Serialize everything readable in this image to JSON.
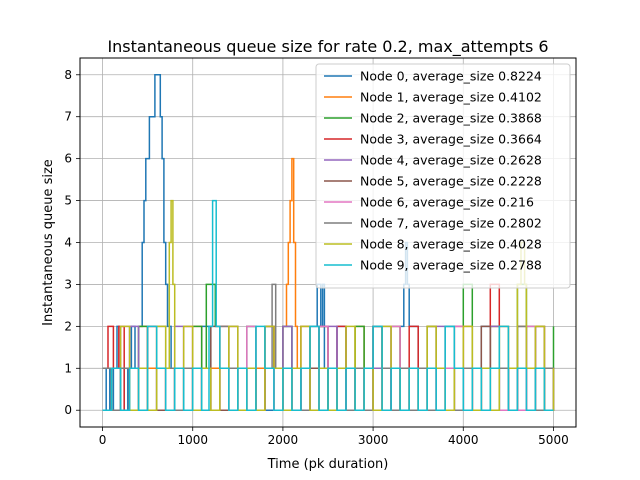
{
  "chart_data": {
    "type": "line",
    "title": "Instantaneous queue size for rate 0.2, max_attempts 6",
    "xlabel": "Time (pk duration)",
    "ylabel": "Instantaneous queue size",
    "xlim": [
      -250,
      5250
    ],
    "ylim": [
      -0.4,
      8.4
    ],
    "xticks": [
      0,
      1000,
      2000,
      3000,
      4000,
      5000
    ],
    "yticks": [
      0,
      1,
      2,
      3,
      4,
      5,
      6,
      7,
      8
    ],
    "grid": true,
    "legend_position": "top-right",
    "series": [
      {
        "name": "Node 0, average_size 0.8224",
        "color": "#1f77b4",
        "x": [
          0,
          40,
          80,
          120,
          160,
          200,
          240,
          280,
          320,
          360,
          400,
          440,
          460,
          480,
          500,
          520,
          540,
          560,
          580,
          600,
          620,
          640,
          660,
          680,
          700,
          720,
          760,
          800,
          900,
          1000,
          1100,
          1200,
          1300,
          1400,
          1500,
          1600,
          1700,
          1800,
          1900,
          2000,
          2100,
          2200,
          2300,
          2380,
          2400,
          2420,
          2440,
          2460,
          2500,
          2600,
          2700,
          2800,
          2900,
          3000,
          3100,
          3200,
          3300,
          3340,
          3360,
          3380,
          3400,
          3500,
          3600,
          3700,
          3800,
          3900,
          4000,
          4100,
          4200,
          4300,
          4400,
          4500,
          4600,
          4700,
          4800,
          4900,
          5000
        ],
        "y": [
          0,
          1,
          0,
          1,
          2,
          1,
          0,
          1,
          2,
          1,
          2,
          4,
          5,
          6,
          6,
          7,
          7,
          7,
          8,
          8,
          8,
          7,
          6,
          4,
          3,
          2,
          1,
          0,
          1,
          0,
          2,
          1,
          0,
          1,
          0,
          2,
          1,
          0,
          1,
          2,
          0,
          1,
          2,
          3,
          3,
          2,
          3,
          1,
          0,
          2,
          1,
          0,
          1,
          2,
          1,
          0,
          2,
          3,
          4,
          3,
          2,
          1,
          0,
          1,
          2,
          1,
          0,
          1,
          2,
          1,
          0,
          1,
          2,
          1,
          0,
          1,
          0
        ]
      },
      {
        "name": "Node 1, average_size 0.4102",
        "color": "#ff7f0e",
        "x": [
          0,
          100,
          200,
          300,
          400,
          500,
          600,
          700,
          800,
          900,
          1000,
          1100,
          1200,
          1300,
          1400,
          1500,
          1600,
          1700,
          1800,
          1900,
          2000,
          2040,
          2060,
          2080,
          2100,
          2120,
          2140,
          2160,
          2200,
          2300,
          2400,
          2500,
          2600,
          2700,
          2800,
          2900,
          3000,
          3100,
          3200,
          3300,
          3400,
          3500,
          3600,
          3700,
          3800,
          3900,
          4000,
          4100,
          4200,
          4300,
          4400,
          4500,
          4600,
          4700,
          4800,
          4900,
          5000
        ],
        "y": [
          1,
          0,
          1,
          0,
          2,
          1,
          0,
          1,
          0,
          1,
          2,
          0,
          1,
          0,
          2,
          1,
          0,
          1,
          2,
          0,
          2,
          3,
          4,
          5,
          6,
          4,
          2,
          1,
          0,
          1,
          2,
          0,
          1,
          0,
          2,
          1,
          0,
          1,
          2,
          0,
          1,
          0,
          2,
          1,
          0,
          1,
          2,
          0,
          1,
          2,
          1,
          0,
          2,
          1,
          0,
          1,
          0
        ]
      },
      {
        "name": "Node 2, average_size 0.3868",
        "color": "#2ca02c",
        "x": [
          0,
          100,
          200,
          300,
          400,
          500,
          600,
          700,
          800,
          900,
          1000,
          1100,
          1150,
          1200,
          1250,
          1300,
          1400,
          1500,
          1600,
          1700,
          1800,
          1900,
          2000,
          2100,
          2200,
          2300,
          2400,
          2500,
          2600,
          2700,
          2800,
          2900,
          3000,
          3100,
          3200,
          3300,
          3400,
          3500,
          3600,
          3700,
          3800,
          3900,
          4000,
          4100,
          4200,
          4300,
          4400,
          4500,
          4600,
          4700,
          4800,
          4900,
          5000
        ],
        "y": [
          0,
          1,
          0,
          1,
          2,
          0,
          1,
          0,
          1,
          0,
          2,
          1,
          3,
          3,
          2,
          1,
          0,
          1,
          2,
          0,
          1,
          0,
          2,
          1,
          0,
          1,
          2,
          0,
          1,
          0,
          2,
          1,
          0,
          1,
          2,
          0,
          1,
          0,
          2,
          1,
          0,
          1,
          3,
          1,
          0,
          2,
          1,
          0,
          3,
          2,
          1,
          0,
          2
        ]
      },
      {
        "name": "Node 3, average_size 0.3664",
        "color": "#d62728",
        "x": [
          0,
          60,
          120,
          180,
          240,
          300,
          400,
          500,
          600,
          700,
          800,
          900,
          1000,
          1100,
          1200,
          1300,
          1400,
          1500,
          1600,
          1700,
          1800,
          1900,
          2000,
          2100,
          2200,
          2300,
          2400,
          2500,
          2600,
          2700,
          2800,
          2900,
          3000,
          3100,
          3200,
          3300,
          3400,
          3500,
          3600,
          3700,
          3800,
          3900,
          4000,
          4100,
          4200,
          4300,
          4400,
          4500,
          4600,
          4700,
          4800,
          4900,
          5000
        ],
        "y": [
          1,
          2,
          1,
          2,
          0,
          1,
          0,
          2,
          1,
          0,
          1,
          2,
          0,
          1,
          0,
          2,
          1,
          0,
          1,
          0,
          2,
          1,
          0,
          1,
          2,
          0,
          1,
          0,
          2,
          1,
          0,
          1,
          2,
          0,
          1,
          0,
          2,
          1,
          0,
          1,
          0,
          2,
          1,
          0,
          1,
          3,
          2,
          1,
          0,
          1,
          2,
          0,
          1
        ]
      },
      {
        "name": "Node 4, average_size 0.2628",
        "color": "#9467bd",
        "x": [
          0,
          100,
          200,
          300,
          400,
          500,
          600,
          700,
          800,
          900,
          1000,
          1100,
          1200,
          1300,
          1400,
          1500,
          1600,
          1700,
          1800,
          1900,
          2000,
          2100,
          2200,
          2300,
          2400,
          2500,
          2600,
          2700,
          2800,
          2900,
          3000,
          3100,
          3200,
          3300,
          3400,
          3500,
          3600,
          3700,
          3800,
          3900,
          4000,
          4100,
          4200,
          4300,
          4400,
          4500,
          4600,
          4700,
          4800,
          4900,
          5000
        ],
        "y": [
          0,
          1,
          0,
          2,
          1,
          0,
          1,
          0,
          2,
          1,
          0,
          1,
          0,
          1,
          2,
          0,
          1,
          0,
          1,
          0,
          2,
          1,
          0,
          1,
          0,
          2,
          1,
          0,
          1,
          0,
          1,
          2,
          0,
          1,
          0,
          1,
          0,
          2,
          1,
          0,
          1,
          0,
          1,
          2,
          0,
          1,
          0,
          1,
          0,
          1,
          0
        ]
      },
      {
        "name": "Node 5, average_size 0.2228",
        "color": "#8c564b",
        "x": [
          0,
          100,
          200,
          300,
          400,
          500,
          600,
          700,
          800,
          900,
          1000,
          1100,
          1200,
          1300,
          1400,
          1500,
          1600,
          1700,
          1800,
          1900,
          2000,
          2100,
          2200,
          2300,
          2400,
          2500,
          2600,
          2700,
          2800,
          2900,
          3000,
          3100,
          3200,
          3300,
          3400,
          3500,
          3600,
          3700,
          3800,
          3900,
          4000,
          4100,
          4200,
          4300,
          4400,
          4500,
          4600,
          4700,
          4800,
          4900,
          5000
        ],
        "y": [
          1,
          0,
          1,
          0,
          1,
          2,
          0,
          1,
          0,
          1,
          0,
          1,
          2,
          0,
          1,
          0,
          1,
          0,
          2,
          1,
          0,
          1,
          0,
          1,
          2,
          0,
          1,
          0,
          1,
          0,
          2,
          1,
          0,
          1,
          0,
          1,
          2,
          0,
          1,
          0,
          1,
          0,
          2,
          1,
          0,
          1,
          0,
          1,
          2,
          0,
          1
        ]
      },
      {
        "name": "Node 6, average_size 0.216",
        "color": "#e377c2",
        "x": [
          0,
          100,
          200,
          300,
          400,
          500,
          600,
          700,
          800,
          900,
          1000,
          1100,
          1200,
          1300,
          1400,
          1500,
          1600,
          1700,
          1800,
          1900,
          2000,
          2100,
          2200,
          2300,
          2400,
          2500,
          2600,
          2700,
          2800,
          2900,
          3000,
          3100,
          3200,
          3300,
          3400,
          3500,
          3600,
          3700,
          3800,
          3900,
          4000,
          4100,
          4200,
          4300,
          4400,
          4500,
          4600,
          4700,
          4800,
          4900,
          5000
        ],
        "y": [
          0,
          1,
          2,
          0,
          1,
          0,
          1,
          0,
          1,
          2,
          0,
          1,
          0,
          1,
          0,
          1,
          2,
          0,
          1,
          0,
          1,
          0,
          1,
          0,
          2,
          1,
          0,
          1,
          0,
          1,
          0,
          1,
          2,
          0,
          1,
          0,
          1,
          0,
          1,
          2,
          0,
          1,
          0,
          1,
          0,
          1,
          0,
          2,
          1,
          0,
          1
        ]
      },
      {
        "name": "Node 7, average_size 0.2802",
        "color": "#7f7f7f",
        "x": [
          0,
          100,
          200,
          300,
          400,
          500,
          600,
          700,
          800,
          900,
          1000,
          1100,
          1200,
          1300,
          1400,
          1500,
          1600,
          1700,
          1800,
          1880,
          1920,
          2000,
          2100,
          2200,
          2300,
          2400,
          2500,
          2600,
          2700,
          2800,
          2900,
          3000,
          3100,
          3200,
          3300,
          3400,
          3500,
          3600,
          3700,
          3800,
          3900,
          4000,
          4100,
          4200,
          4300,
          4400,
          4500,
          4600,
          4700,
          4800,
          4900,
          5000
        ],
        "y": [
          1,
          0,
          1,
          0,
          1,
          0,
          2,
          1,
          0,
          1,
          0,
          1,
          0,
          2,
          1,
          0,
          1,
          0,
          1,
          3,
          1,
          0,
          1,
          0,
          2,
          1,
          0,
          1,
          0,
          1,
          0,
          2,
          1,
          0,
          1,
          0,
          1,
          0,
          1,
          2,
          0,
          1,
          0,
          1,
          0,
          1,
          0,
          2,
          1,
          0,
          1,
          0
        ]
      },
      {
        "name": "Node 8, average_size 0.4028",
        "color": "#bcbd22",
        "x": [
          0,
          100,
          200,
          300,
          400,
          500,
          600,
          700,
          740,
          760,
          780,
          800,
          900,
          1000,
          1100,
          1200,
          1300,
          1400,
          1500,
          1600,
          1700,
          1800,
          1900,
          2000,
          2100,
          2200,
          2300,
          2400,
          2500,
          2600,
          2700,
          2800,
          2900,
          3000,
          3100,
          3200,
          3300,
          3400,
          3500,
          3600,
          3700,
          3800,
          3900,
          4000,
          4100,
          4200,
          4300,
          4400,
          4500,
          4600,
          4640,
          4680,
          4700,
          4800,
          4900,
          5000
        ],
        "y": [
          0,
          1,
          2,
          0,
          1,
          0,
          2,
          1,
          4,
          5,
          3,
          1,
          2,
          0,
          1,
          0,
          1,
          2,
          0,
          1,
          0,
          2,
          1,
          0,
          1,
          2,
          0,
          1,
          0,
          1,
          2,
          0,
          1,
          0,
          2,
          1,
          0,
          1,
          0,
          2,
          1,
          0,
          1,
          2,
          0,
          1,
          0,
          2,
          1,
          3,
          4,
          3,
          1,
          2,
          0,
          1
        ]
      },
      {
        "name": "Node 9, average_size 0.2788",
        "color": "#17becf",
        "x": [
          0,
          100,
          200,
          300,
          400,
          500,
          600,
          700,
          800,
          900,
          1000,
          1100,
          1180,
          1220,
          1260,
          1300,
          1400,
          1500,
          1600,
          1700,
          1800,
          1900,
          2000,
          2100,
          2200,
          2300,
          2400,
          2500,
          2600,
          2700,
          2800,
          2900,
          3000,
          3100,
          3200,
          3300,
          3400,
          3500,
          3600,
          3700,
          3800,
          3900,
          4000,
          4100,
          4200,
          4300,
          4400,
          4500,
          4600,
          4700,
          4800,
          4900,
          5000
        ],
        "y": [
          0,
          1,
          0,
          1,
          0,
          2,
          1,
          0,
          1,
          0,
          1,
          0,
          2,
          5,
          2,
          1,
          0,
          1,
          0,
          2,
          1,
          0,
          1,
          0,
          1,
          2,
          0,
          1,
          0,
          1,
          0,
          1,
          2,
          0,
          1,
          0,
          1,
          0,
          1,
          0,
          2,
          1,
          0,
          1,
          0,
          1,
          2,
          0,
          1,
          0,
          1,
          0,
          0
        ]
      }
    ]
  }
}
